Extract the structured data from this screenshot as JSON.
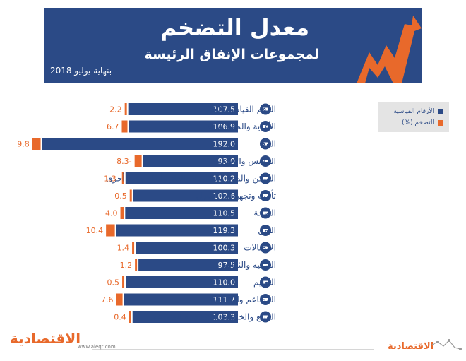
{
  "header": {
    "title": "معدل التضخم",
    "subtitle": "لمجموعات الإنفاق الرئيسة",
    "date": "بنهاية يوليو 2018",
    "bg_color": "#2b4a86",
    "accent_color": "#e8692b"
  },
  "legend": {
    "index_label": "الأرقام القياسية",
    "inflation_label": "التضخم (%)",
    "index_color": "#2b4a86",
    "inflation_color": "#e8692b"
  },
  "chart_data": {
    "type": "bar",
    "orientation": "horizontal",
    "categories": [
      "الرقم القياسي العام",
      "الأغذية والمشروبات",
      "التبغ",
      "الملابس والأحذية",
      "السكن والمياه والكهرباء والغاز وأنواع وقود أخرى",
      "تأثيث وتجهيزات المنزل",
      "الصحة",
      "النقل",
      "الاتصالات",
      "الترفيه والثقافة",
      "التعليم",
      "المطاعم والفنادق",
      "السلع والخدمات الشخصية المتنوعة"
    ],
    "category_icons": [
      "coins-icon",
      "food-icon",
      "tobacco-icon",
      "shirt-icon",
      "house-icon",
      "lamp-icon",
      "health-icon",
      "car-icon",
      "phone-icon",
      "bowling-icon",
      "education-icon",
      "restaurant-icon",
      "personal-care-icon"
    ],
    "series": [
      {
        "name": "الأرقام القياسية",
        "values": [
          107.5,
          106.9,
          192.0,
          93.0,
          110.2,
          102.6,
          110.5,
          119.3,
          100.3,
          97.5,
          110.0,
          111.7,
          103.3
        ],
        "labels": [
          "107.5",
          "106.9",
          "192.0",
          "93.0",
          "110.2",
          "102.6",
          "110.5",
          "119.3",
          "100.3",
          "97.5",
          "110.0",
          "111.7",
          "103.3"
        ]
      },
      {
        "name": "التضخم (%)",
        "values": [
          2.2,
          6.7,
          9.8,
          -8.3,
          -1.3,
          0.5,
          4.0,
          10.4,
          1.4,
          1.2,
          0.5,
          7.6,
          0.4
        ],
        "labels": [
          "2.2",
          "6.7",
          "9.8",
          "8.3-",
          "1.3-",
          "0.5",
          "4.0",
          "10.4",
          "1.4",
          "1.2",
          "0.5",
          "7.6",
          "0.4"
        ]
      }
    ]
  },
  "footer": {
    "logo_text": "الاقتصادية",
    "url": "www.aleqt.com",
    "logo_text_small": "الاقتصادية"
  }
}
